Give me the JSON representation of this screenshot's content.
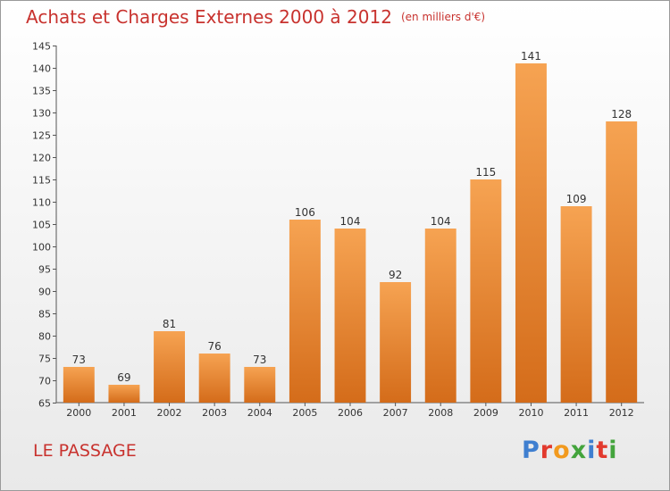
{
  "title": "Achats et Charges Externes 2000 à 2012",
  "subtitle": "(en milliers d'€)",
  "commune": "LE PASSAGE",
  "logo": {
    "letters": [
      "P",
      "r",
      "o",
      "x",
      "i",
      "t",
      "i"
    ],
    "colors": [
      "#3f7fd0",
      "#e23a2e",
      "#f29a1e",
      "#43a43c",
      "#3f7fd0",
      "#e23a2e",
      "#43a43c"
    ]
  },
  "chart_data": {
    "type": "bar",
    "title": "Achats et Charges Externes 2000 à 2012",
    "subtitle": "(en milliers d'€)",
    "xlabel": "",
    "ylabel": "",
    "categories": [
      "2000",
      "2001",
      "2002",
      "2003",
      "2004",
      "2005",
      "2006",
      "2007",
      "2008",
      "2009",
      "2010",
      "2011",
      "2012"
    ],
    "values": [
      73,
      69,
      81,
      76,
      73,
      106,
      104,
      92,
      104,
      115,
      141,
      109,
      128
    ],
    "ylim": [
      65,
      145
    ],
    "yticks": [
      65,
      70,
      75,
      80,
      85,
      90,
      95,
      100,
      105,
      110,
      115,
      120,
      125,
      130,
      135,
      140,
      145
    ],
    "grid": false,
    "legend": "none",
    "bar_color": "#f29a4a",
    "bar_color_dark": "#d96f1c"
  }
}
